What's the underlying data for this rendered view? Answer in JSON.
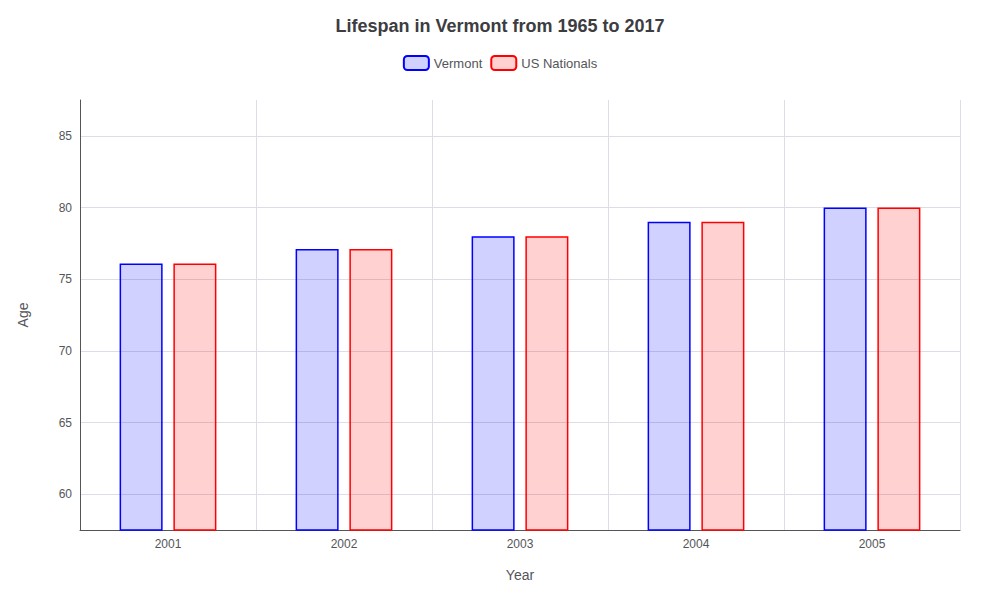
{
  "chart_data": {
    "type": "bar",
    "title": "Lifespan in Vermont from 1965 to 2017",
    "xlabel": "Year",
    "ylabel": "Age",
    "categories": [
      "2001",
      "2002",
      "2003",
      "2004",
      "2005"
    ],
    "series": [
      {
        "name": "Vermont",
        "color": "#0000ff",
        "values": [
          76.1,
          77.1,
          78.0,
          79.0,
          80.0
        ]
      },
      {
        "name": "US Nationals",
        "color": "#ff0000",
        "values": [
          76.1,
          77.1,
          78.0,
          79.0,
          80.0
        ]
      }
    ],
    "ylim": [
      57.5,
      87.5
    ],
    "yticks": [
      60,
      65,
      70,
      75,
      80,
      85
    ],
    "grid": true,
    "legend": "top"
  }
}
